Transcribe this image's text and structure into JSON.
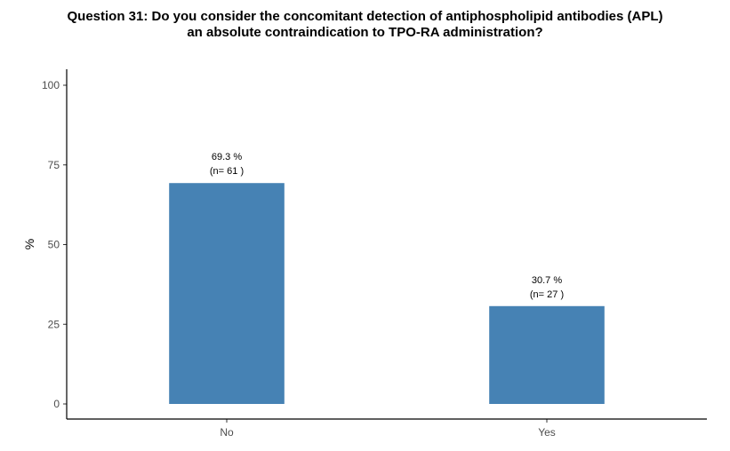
{
  "chart_data": {
    "type": "bar",
    "title_lines": [
      "Question 31: Do you consider the concomitant detection of antiphospholipid antibodies (APL)",
      "an absolute contraindication to TPO-RA administration?"
    ],
    "xlabel": "",
    "ylabel": "%",
    "categories": [
      "No",
      "Yes"
    ],
    "values": [
      69.3,
      30.7
    ],
    "value_labels": [
      "69.3 %",
      "30.7 %"
    ],
    "count_labels": [
      "(n= 61 )",
      "(n= 27 )"
    ],
    "ylim": [
      0,
      100
    ],
    "yticks": [
      0,
      25,
      50,
      75,
      100
    ],
    "bar_color": "#4682b4",
    "grid": false,
    "legend": "none"
  }
}
